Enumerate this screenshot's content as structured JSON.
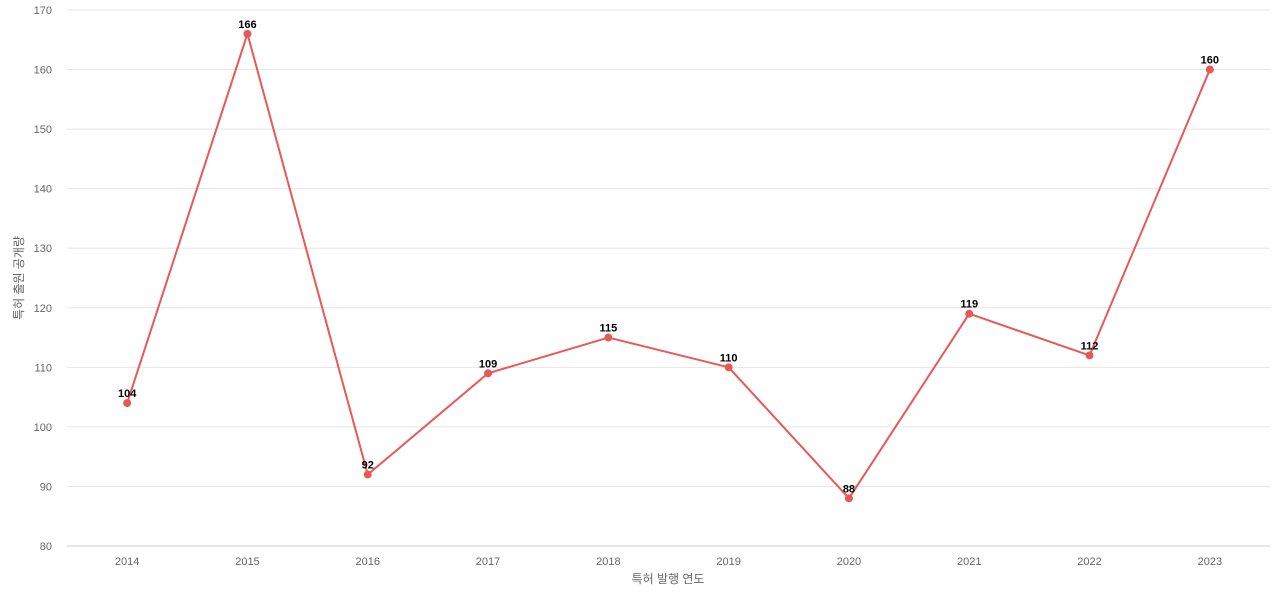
{
  "chart_data": {
    "type": "line",
    "title": "",
    "xlabel": "특허 발행 연도",
    "ylabel": "특허 출원 공개량",
    "x": [
      "2014",
      "2015",
      "2016",
      "2017",
      "2018",
      "2019",
      "2020",
      "2021",
      "2022",
      "2023"
    ],
    "series": [
      {
        "values": [
          104,
          166,
          92,
          109,
          115,
          110,
          88,
          119,
          112,
          160
        ],
        "color": "#e85858"
      }
    ],
    "ylim": [
      80,
      170
    ],
    "yticks": [
      80,
      90,
      100,
      110,
      120,
      130,
      140,
      150,
      160,
      170
    ],
    "grid": true,
    "legend": "none",
    "data_labels": true
  }
}
